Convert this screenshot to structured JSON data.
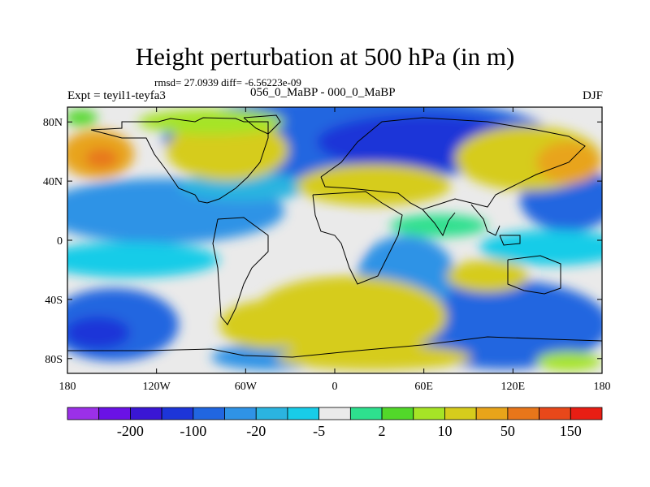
{
  "title": "Height perturbation at 500 hPa (in m)",
  "stats": "rmsd= 27.0939 diff= -6.56223e-09",
  "left_label": "Expt = teyil1-teyfa3",
  "center_label": "056_0_MaBP - 000_0_MaBP",
  "right_label": "DJF",
  "map": {
    "lon_range": [
      -180,
      180
    ],
    "lat_range": [
      -90,
      90
    ],
    "lat_ticks": [
      {
        "value": 80,
        "label": "80N"
      },
      {
        "value": 40,
        "label": "40N"
      },
      {
        "value": 0,
        "label": "0"
      },
      {
        "value": -40,
        "label": "40S"
      },
      {
        "value": -80,
        "label": "80S"
      }
    ],
    "lon_ticks": [
      {
        "value": -180,
        "label": "180"
      },
      {
        "value": -120,
        "label": "120W"
      },
      {
        "value": -60,
        "label": "60W"
      },
      {
        "value": 0,
        "label": "0"
      },
      {
        "value": 60,
        "label": "60E"
      },
      {
        "value": 120,
        "label": "120E"
      },
      {
        "value": 180,
        "label": "180"
      }
    ]
  },
  "colorbar": {
    "colors": [
      "#9b30e8",
      "#6a12e6",
      "#3a16d4",
      "#1d35d8",
      "#2166e0",
      "#2f93e6",
      "#2bb4e0",
      "#18cce8",
      "#eaeaea",
      "#2ee08e",
      "#52d82a",
      "#a6e426",
      "#d6cc1c",
      "#e8a41a",
      "#e8761a",
      "#e8481a",
      "#e81e14"
    ],
    "labels": [
      {
        "index": 1,
        "text": "-200"
      },
      {
        "index": 3,
        "text": "-100"
      },
      {
        "index": 5,
        "text": "-20"
      },
      {
        "index": 7,
        "text": "-5"
      },
      {
        "index": 9,
        "text": "2"
      },
      {
        "index": 11,
        "text": "10"
      },
      {
        "index": 13,
        "text": "50"
      },
      {
        "index": 15,
        "text": "150"
      }
    ]
  }
}
